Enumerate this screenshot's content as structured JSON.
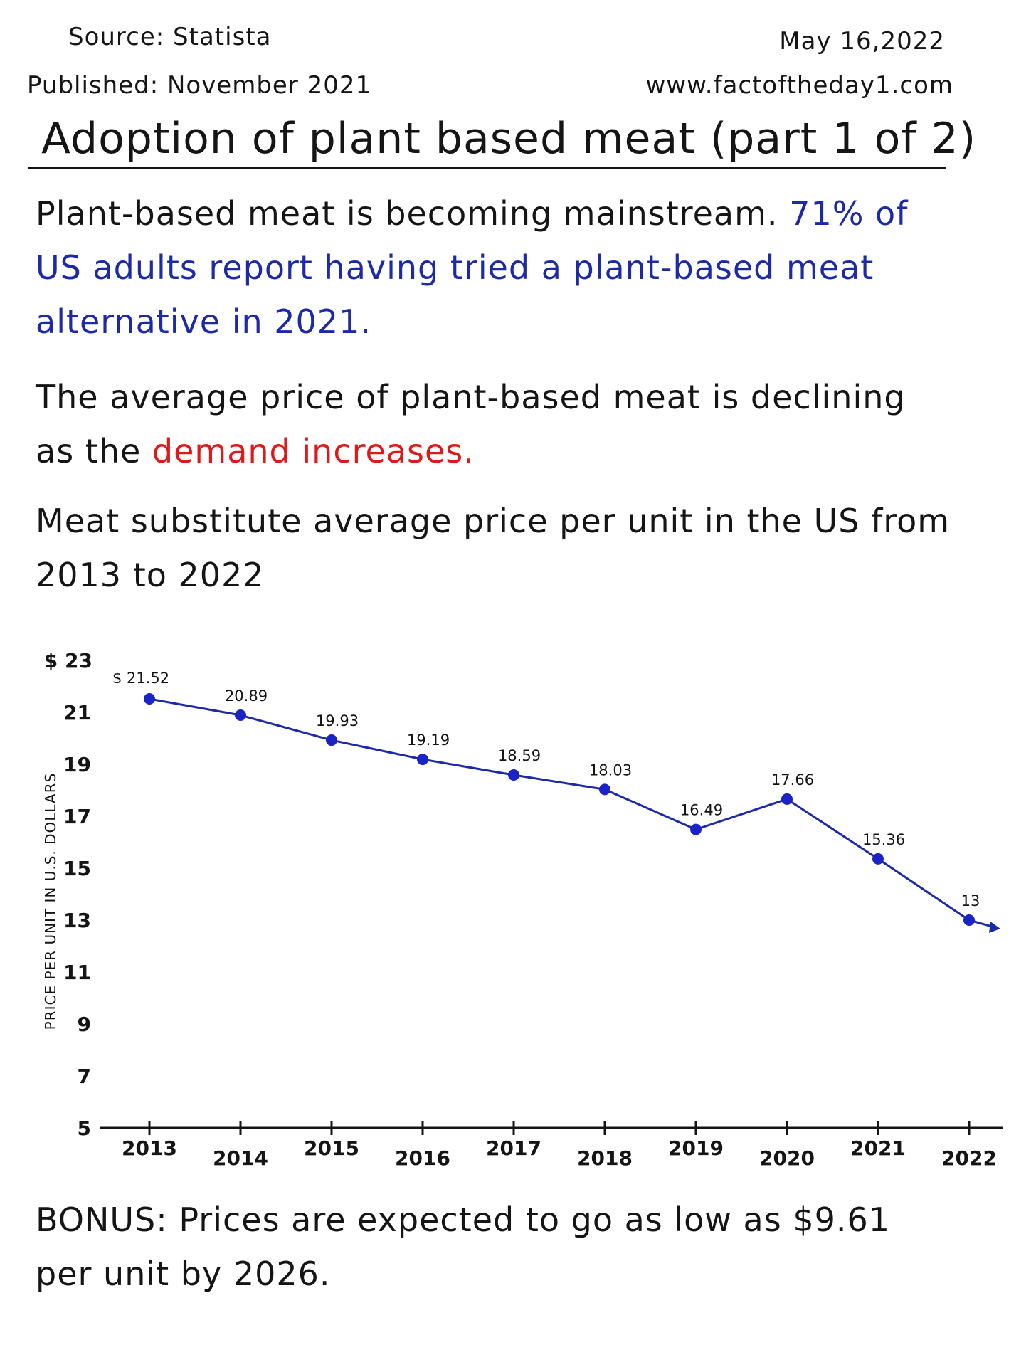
{
  "header": {
    "source": "Source: Statista",
    "published": "Published: November 2021",
    "date": "May 16,2022",
    "website": "www.factoftheday1.com"
  },
  "title": "Adoption of plant based meat (part 1 of 2)",
  "paragraph1": {
    "text_plain": "Plant-based meat is becoming mainstream.",
    "text_highlight": "71% of US adults report having tried a plant-based meat alternative in 2021."
  },
  "paragraph2": {
    "text_plain": "The average price of plant-based meat is declining as the",
    "text_highlight": "demand increases."
  },
  "chart_heading": "Meat substitute average price per unit in the US from 2013 to 2022",
  "bonus": "BONUS: Prices are expected to go as low as $9.61 per unit by 2026.",
  "colors": {
    "highlight_blue": "#1c2aa8",
    "highlight_red": "#e01818",
    "series_line": "#1c2aa8",
    "ink": "#151515"
  },
  "chart_data": {
    "type": "line",
    "title": "",
    "xlabel": "",
    "ylabel": "PRICE PER UNIT IN U.S. DOLLARS",
    "x": [
      "2013",
      "2014",
      "2015",
      "2016",
      "2017",
      "2018",
      "2019",
      "2020",
      "2021",
      "2022"
    ],
    "series": [
      {
        "values": [
          21.52,
          20.89,
          19.93,
          19.19,
          18.59,
          18.03,
          16.49,
          17.66,
          15.36,
          13
        ]
      }
    ],
    "data_labels": [
      "$ 21.52",
      "20.89",
      "19.93",
      "19.19",
      "18.59",
      "18.03",
      "16.49",
      "17.66",
      "15.36",
      "13"
    ],
    "yticks": [
      "$ 23",
      "21",
      "19",
      "17",
      "15",
      "13",
      "11",
      "9",
      "7",
      "5"
    ],
    "ylim": [
      5,
      23
    ],
    "grid": false,
    "trend_arrow": true
  }
}
